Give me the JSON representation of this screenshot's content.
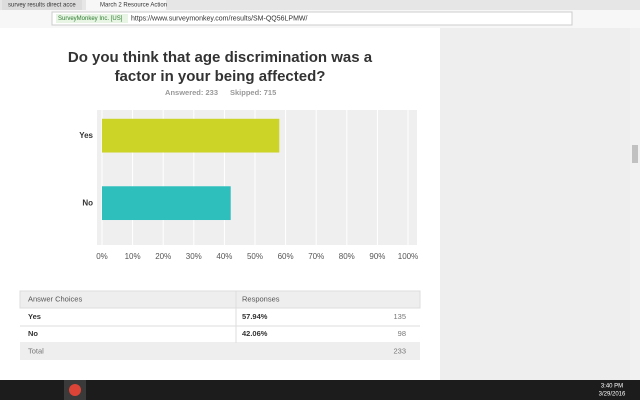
{
  "browser": {
    "tabs": [
      "survey results direct acce",
      "March 2 Resource Action"
    ],
    "site_badge": "SurveyMonkey Inc. [US]",
    "url": "https://www.surveymonkey.com/results/SM-QQ56LPMW/"
  },
  "chart_data": {
    "type": "bar",
    "orientation": "horizontal",
    "title": [
      "Do you think that age discrimination was a",
      "factor in your being affected?"
    ],
    "answered": "Answered: 233",
    "skipped": "Skipped: 715",
    "categories": [
      "Yes",
      "No"
    ],
    "values": [
      57.94,
      42.06
    ],
    "colors": [
      "#cdd428",
      "#2ebfbd"
    ],
    "xlim": [
      0,
      100
    ],
    "xticks": [
      {
        "value": 0,
        "label": "0%"
      },
      {
        "value": 10,
        "label": "10%"
      },
      {
        "value": 20,
        "label": "20%"
      },
      {
        "value": 30,
        "label": "30%"
      },
      {
        "value": 40,
        "label": "40%"
      },
      {
        "value": 50,
        "label": "50%"
      },
      {
        "value": 60,
        "label": "60%"
      },
      {
        "value": 70,
        "label": "70%"
      },
      {
        "value": 80,
        "label": "80%"
      },
      {
        "value": 90,
        "label": "90%"
      },
      {
        "value": 100,
        "label": "100%"
      }
    ],
    "grid": true
  },
  "table": {
    "header": [
      "Answer Choices",
      "Responses"
    ],
    "rows": [
      [
        "Yes",
        "57.94%",
        "135"
      ],
      [
        "No",
        "42.06%",
        "98"
      ]
    ],
    "total": [
      "Total",
      "233"
    ]
  },
  "taskbar": {
    "time": "3:40 PM",
    "date": "3/29/2016"
  }
}
